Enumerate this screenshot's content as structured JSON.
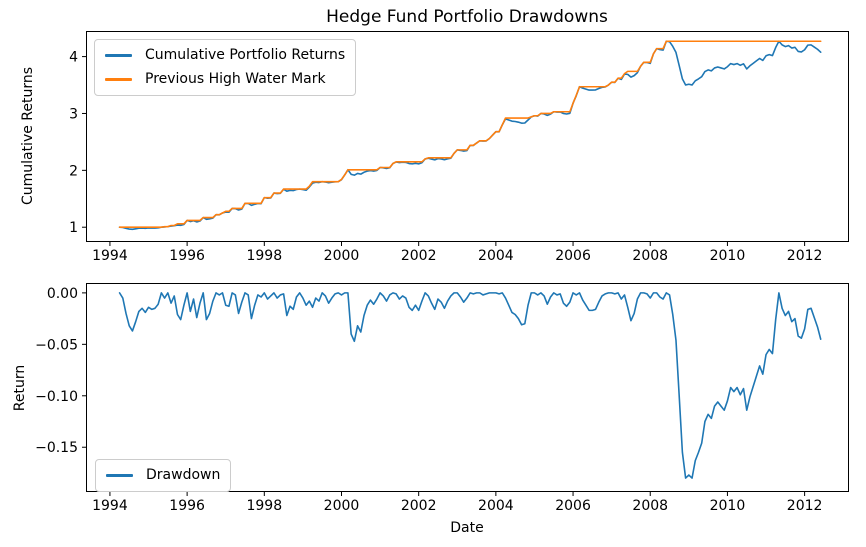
{
  "figure": {
    "background_color": "#ffffff",
    "text_color": "#000000"
  },
  "colors": {
    "blue_line": "#1f77b4",
    "orange_line": "#ff7f0e",
    "legend_border": "#cccccc",
    "spine": "#000000"
  },
  "chart_data": [
    {
      "id": "cumulative",
      "type": "line",
      "title": "Hedge Fund Portfolio Drawdowns",
      "ylabel": "Cumulative Returns",
      "xlabel": "",
      "grid": false,
      "legend_position": "upper-left",
      "xlim": [
        1993.38,
        2013.15
      ],
      "ylim": [
        0.74,
        4.45
      ],
      "x_start": 1994.25,
      "x_step": 0.0833333,
      "xtick_values": [
        1994,
        1996,
        1998,
        2000,
        2002,
        2004,
        2006,
        2008,
        2010,
        2012
      ],
      "xtick_labels": [
        "1994",
        "1996",
        "1998",
        "2000",
        "2002",
        "2004",
        "2006",
        "2008",
        "2010",
        "2012"
      ],
      "ytick_values": [
        1,
        2,
        3,
        4
      ],
      "ytick_labels": [
        "1",
        "2",
        "3",
        "4"
      ],
      "series": [
        {
          "name": "Cumulative Portfolio Returns",
          "color": "#1f77b4",
          "values_derived_from": "high_water_mark[i] * (1 + drawdown[i])"
        },
        {
          "name": "Previous High Water Mark",
          "color": "#ff7f0e",
          "values": [
            1.0,
            1.0,
            1.0,
            1.0,
            1.0,
            1.0,
            1.0,
            1.0,
            1.0,
            1.0,
            1.0,
            1.0,
            1.0,
            1.0,
            1.01,
            1.01,
            1.03,
            1.03,
            1.06,
            1.06,
            1.06,
            1.12,
            1.12,
            1.12,
            1.12,
            1.12,
            1.17,
            1.17,
            1.17,
            1.17,
            1.22,
            1.22,
            1.25,
            1.28,
            1.28,
            1.33,
            1.33,
            1.33,
            1.33,
            1.42,
            1.42,
            1.42,
            1.42,
            1.42,
            1.42,
            1.52,
            1.52,
            1.52,
            1.6,
            1.6,
            1.6,
            1.67,
            1.67,
            1.67,
            1.67,
            1.67,
            1.67,
            1.67,
            1.67,
            1.72,
            1.8,
            1.8,
            1.8,
            1.8,
            1.8,
            1.8,
            1.8,
            1.8,
            1.8,
            1.84,
            1.92,
            2.01,
            2.01,
            2.01,
            2.01,
            2.01,
            2.01,
            2.01,
            2.01,
            2.01,
            2.01,
            2.05,
            2.05,
            2.05,
            2.05,
            2.12,
            2.15,
            2.15,
            2.15,
            2.15,
            2.15,
            2.15,
            2.15,
            2.15,
            2.15,
            2.2,
            2.22,
            2.22,
            2.22,
            2.22,
            2.22,
            2.22,
            2.22,
            2.22,
            2.3,
            2.36,
            2.36,
            2.36,
            2.36,
            2.44,
            2.44,
            2.48,
            2.52,
            2.52,
            2.52,
            2.56,
            2.62,
            2.68,
            2.68,
            2.8,
            2.92,
            2.92,
            2.92,
            2.92,
            2.92,
            2.92,
            2.92,
            2.92,
            2.94,
            2.96,
            2.96,
            3.0,
            3.0,
            3.0,
            3.0,
            3.03,
            3.03,
            3.03,
            3.03,
            3.03,
            3.03,
            3.18,
            3.32,
            3.47,
            3.47,
            3.47,
            3.47,
            3.47,
            3.47,
            3.47,
            3.47,
            3.47,
            3.5,
            3.55,
            3.55,
            3.62,
            3.62,
            3.7,
            3.74,
            3.74,
            3.74,
            3.74,
            3.83,
            3.9,
            3.9,
            3.9,
            4.05,
            4.14,
            4.14,
            4.14,
            4.27,
            4.27,
            4.27,
            4.27,
            4.27,
            4.27,
            4.27,
            4.27,
            4.27,
            4.27,
            4.27,
            4.27,
            4.27,
            4.27,
            4.27,
            4.27,
            4.27,
            4.27,
            4.27,
            4.27,
            4.27,
            4.27,
            4.27,
            4.27,
            4.27,
            4.27,
            4.27,
            4.27,
            4.27,
            4.27,
            4.27,
            4.27,
            4.27,
            4.27,
            4.27,
            4.27,
            4.27,
            4.27,
            4.27,
            4.27,
            4.27,
            4.27,
            4.27,
            4.27,
            4.27,
            4.27,
            4.27,
            4.27,
            4.27
          ]
        }
      ]
    },
    {
      "id": "drawdown",
      "type": "line",
      "title": "",
      "ylabel": "Return",
      "xlabel": "Date",
      "grid": false,
      "legend_position": "lower-left",
      "xlim": [
        1993.38,
        2013.15
      ],
      "ylim": [
        -0.1935,
        0.0096
      ],
      "x_start": 1994.25,
      "x_step": 0.0833333,
      "xtick_values": [
        1994,
        1996,
        1998,
        2000,
        2002,
        2004,
        2006,
        2008,
        2010,
        2012
      ],
      "xtick_labels": [
        "1994",
        "1996",
        "1998",
        "2000",
        "2002",
        "2004",
        "2006",
        "2008",
        "2010",
        "2012"
      ],
      "ytick_values": [
        0,
        -0.05,
        -0.1,
        -0.15
      ],
      "ytick_labels": [
        "0.00",
        "−0.05",
        "−0.10",
        "−0.15"
      ],
      "series": [
        {
          "name": "Drawdown",
          "color": "#1f77b4",
          "values": [
            0,
            -0.005,
            -0.02,
            -0.032,
            -0.037,
            -0.028,
            -0.018,
            -0.015,
            -0.019,
            -0.014,
            -0.016,
            -0.015,
            -0.011,
            0,
            -0.005,
            0,
            -0.01,
            -0.003,
            -0.021,
            -0.026,
            -0.012,
            0,
            -0.018,
            -0.006,
            -0.024,
            -0.01,
            0,
            -0.026,
            -0.02,
            -0.008,
            0,
            -0.002,
            0,
            -0.012,
            -0.013,
            0,
            -0.002,
            -0.02,
            -0.009,
            0,
            -0.002,
            -0.025,
            -0.012,
            -0.002,
            -0.004,
            0,
            -0.006,
            -0.003,
            0,
            -0.005,
            -0.002,
            -0.001,
            -0.022,
            -0.013,
            -0.016,
            -0.004,
            0,
            -0.005,
            -0.012,
            -0.008,
            -0.014,
            -0.005,
            -0.008,
            0,
            -0.003,
            -0.01,
            -0.005,
            -0.001,
            0,
            -0.002,
            0,
            0,
            -0.04,
            -0.047,
            -0.032,
            -0.038,
            -0.022,
            -0.012,
            -0.007,
            -0.011,
            -0.006,
            0,
            -0.003,
            -0.008,
            -0.002,
            0,
            -0.001,
            -0.006,
            -0.003,
            -0.005,
            -0.014,
            -0.017,
            -0.012,
            -0.017,
            -0.008,
            0,
            -0.003,
            -0.01,
            -0.016,
            -0.006,
            -0.009,
            -0.015,
            -0.008,
            -0.003,
            0,
            0,
            -0.004,
            -0.009,
            -0.005,
            0,
            -0.001,
            0,
            0,
            -0.002,
            -0.001,
            0,
            0,
            0,
            -0.001,
            0,
            -0.005,
            -0.012,
            -0.019,
            -0.021,
            -0.025,
            -0.031,
            -0.03,
            -0.012,
            0,
            0,
            -0.002,
            0,
            -0.003,
            -0.011,
            -0.004,
            0,
            -0.002,
            -0.001,
            -0.01,
            -0.013,
            -0.009,
            0,
            -0.002,
            0,
            -0.007,
            -0.012,
            -0.017,
            -0.017,
            -0.016,
            -0.009,
            -0.003,
            -0.001,
            0,
            0,
            -0.001,
            0,
            -0.006,
            -0.002,
            -0.014,
            -0.027,
            -0.02,
            -0.006,
            0,
            0,
            -0.001,
            -0.005,
            0,
            0,
            -0.004,
            -0.006,
            0,
            -0.002,
            -0.021,
            -0.046,
            -0.1,
            -0.155,
            -0.18,
            -0.177,
            -0.18,
            -0.163,
            -0.155,
            -0.146,
            -0.125,
            -0.118,
            -0.122,
            -0.11,
            -0.106,
            -0.11,
            -0.114,
            -0.105,
            -0.092,
            -0.096,
            -0.092,
            -0.099,
            -0.093,
            -0.114,
            -0.101,
            -0.091,
            -0.081,
            -0.071,
            -0.079,
            -0.06,
            -0.055,
            -0.059,
            -0.026,
            0,
            -0.015,
            -0.022,
            -0.018,
            -0.028,
            -0.025,
            -0.042,
            -0.044,
            -0.035,
            -0.016,
            -0.015,
            -0.024,
            -0.033,
            -0.045
          ]
        }
      ]
    }
  ]
}
